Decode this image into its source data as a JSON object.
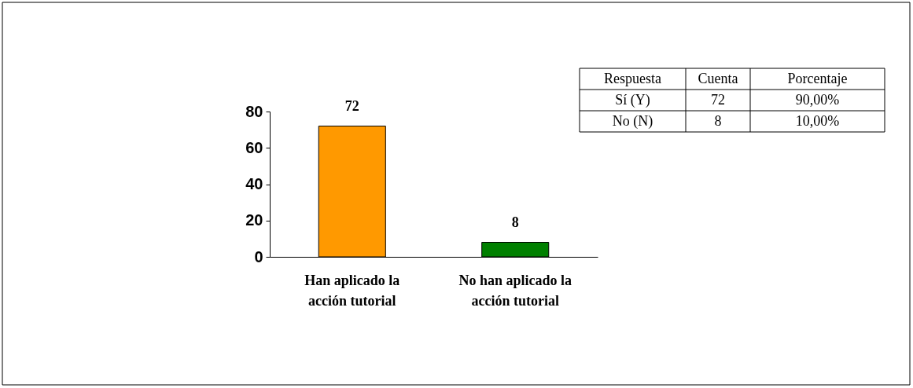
{
  "chart_data": {
    "type": "bar",
    "categories": [
      "Han aplicado la acción tutorial",
      "No han aplicado la acción tutorial"
    ],
    "values": [
      72,
      8
    ],
    "colors": [
      "#ff9900",
      "#008000"
    ],
    "ylim": [
      0,
      80
    ],
    "yticks": [
      0,
      20,
      40,
      60,
      80
    ],
    "grid": false,
    "data_labels": true,
    "annotations": [
      "Respuesta",
      "Cuenta",
      "Porcentaje",
      "Sí (Y)",
      "72",
      "90,00%",
      "No (N)",
      "8",
      "10,00%"
    ]
  }
}
